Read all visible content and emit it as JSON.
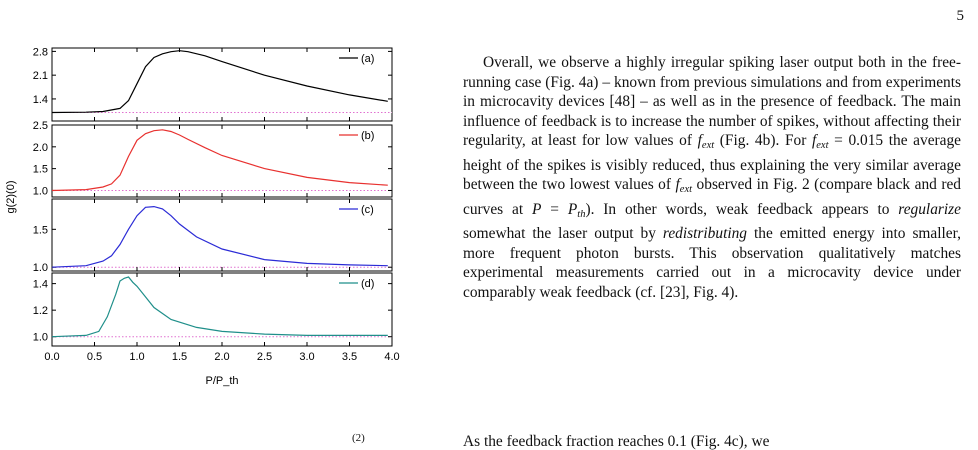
{
  "page": {
    "number": "5"
  },
  "figure": {
    "chart_data": {
      "type": "line",
      "ylabel": "g(2)(0)",
      "xlabel": "P/P_th",
      "xlim": [
        0,
        4
      ],
      "x_ticks": [
        "0.0",
        "0.5",
        "1.0",
        "1.5",
        "2.0",
        "2.5",
        "3.0",
        "3.5",
        "4.0"
      ],
      "reference_line": 1.0,
      "panels": [
        {
          "legend": "(a)",
          "color": "#000000",
          "ylim": [
            0.75,
            2.9
          ],
          "y_ticks": [
            "1.4",
            "2.1",
            "2.8"
          ],
          "x": [
            0,
            0.4,
            0.6,
            0.8,
            0.9,
            1.0,
            1.1,
            1.2,
            1.3,
            1.4,
            1.5,
            1.6,
            1.8,
            2.0,
            2.5,
            3.0,
            3.5,
            3.95
          ],
          "y": [
            1.0,
            1.01,
            1.03,
            1.12,
            1.35,
            1.85,
            2.35,
            2.62,
            2.73,
            2.79,
            2.82,
            2.79,
            2.67,
            2.5,
            2.1,
            1.78,
            1.52,
            1.33
          ]
        },
        {
          "legend": "(b)",
          "color": "#e8312f",
          "ylim": [
            0.85,
            2.5
          ],
          "y_ticks": [
            "1.0",
            "1.5",
            "2.0",
            "2.5"
          ],
          "x": [
            0,
            0.4,
            0.6,
            0.7,
            0.8,
            0.9,
            1.0,
            1.1,
            1.2,
            1.3,
            1.4,
            1.5,
            1.6,
            1.8,
            2.0,
            2.5,
            3.0,
            3.5,
            3.95
          ],
          "y": [
            1.0,
            1.02,
            1.08,
            1.15,
            1.35,
            1.78,
            2.15,
            2.3,
            2.37,
            2.39,
            2.35,
            2.27,
            2.17,
            1.98,
            1.8,
            1.5,
            1.3,
            1.18,
            1.12
          ]
        },
        {
          "legend": "(c)",
          "color": "#2b2bd6",
          "ylim": [
            0.95,
            1.9
          ],
          "y_ticks": [
            "1.0",
            "1.5"
          ],
          "x": [
            0,
            0.4,
            0.6,
            0.7,
            0.8,
            0.9,
            1.0,
            1.1,
            1.2,
            1.3,
            1.4,
            1.5,
            1.7,
            2.0,
            2.5,
            3.0,
            3.5,
            3.95
          ],
          "y": [
            1.0,
            1.02,
            1.08,
            1.15,
            1.3,
            1.5,
            1.68,
            1.79,
            1.8,
            1.77,
            1.68,
            1.57,
            1.4,
            1.24,
            1.1,
            1.05,
            1.03,
            1.02
          ]
        },
        {
          "legend": "(d)",
          "color": "#1f8f8a",
          "ylim": [
            0.93,
            1.48
          ],
          "y_ticks": [
            "1.0",
            "1.2",
            "1.4"
          ],
          "x": [
            0,
            0.4,
            0.55,
            0.65,
            0.75,
            0.8,
            0.85,
            0.9,
            0.95,
            1.0,
            1.1,
            1.2,
            1.4,
            1.7,
            2.0,
            2.5,
            3.0,
            3.5,
            3.95
          ],
          "y": [
            1.0,
            1.01,
            1.04,
            1.15,
            1.32,
            1.42,
            1.44,
            1.45,
            1.41,
            1.38,
            1.3,
            1.22,
            1.13,
            1.07,
            1.04,
            1.02,
            1.01,
            1.01,
            1.01
          ]
        }
      ]
    }
  },
  "body": {
    "paragraph_html": "Overall, we observe a highly irregular spiking laser output both in the free-running case (Fig. 4a) – known from previous simulations and from experiments in microcavity devices [48] – as well as in the presence of feedback. The main influence of feedback is to increase the number of spikes, without affecting their regularity, at least for low values of <i>f<sub class=\"sub\">ext</sub></i> (Fig. 4b). For <i>f<sub class=\"sub\">ext</sub></i> = 0.015 the average height of the spikes is visibly reduced, thus explaining the very similar average between the two lowest values of <i>f<sub class=\"sub\">ext</sub></i> observed in Fig. 2 (compare black and red curves at <i>P</i> = <i>P<sub class=\"sub\">th</sub></i>). In other words, weak feedback appears to <i>regularize</i> somewhat the laser output by <i>redistributing</i> the emitted energy into smaller, more frequent photon bursts. This observation qualitatively matches experimental measurements carried out in a microcavity device under comparably weak feedback (cf. [23], Fig. 4).",
    "cut_line": "As the feedback fraction reaches 0.1 (Fig. 4c), we",
    "cut_left": "(2)"
  }
}
